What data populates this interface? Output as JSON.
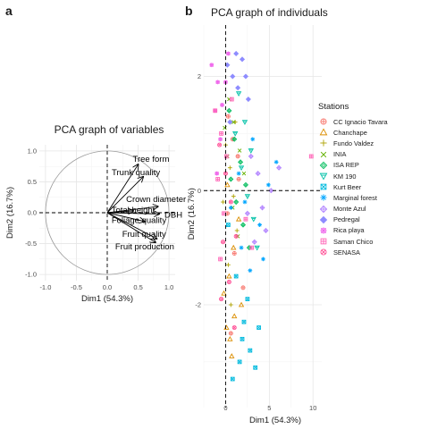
{
  "panels": {
    "a": "a",
    "b": "b"
  },
  "chart_data": [
    {
      "type": "biplot",
      "title": "PCA graph of variables",
      "xlabel": "Dim1 (54.3%)",
      "ylabel": "Dim2 (16.7%)",
      "xlim": [
        -1.1,
        1.1
      ],
      "ylim": [
        -1.1,
        1.1
      ],
      "xticks": [
        -1.0,
        -0.5,
        0.0,
        0.5,
        1.0
      ],
      "yticks": [
        -1.0,
        -0.5,
        0.0,
        0.5,
        1.0
      ],
      "xtick_labels": [
        "-1.0",
        "-0.5",
        "0.0",
        "0.5",
        "1.0"
      ],
      "ytick_labels": [
        "-1.0",
        "-0.5",
        "0.0",
        "0.5",
        "1.0"
      ],
      "grid": true,
      "unit_circle": true,
      "vectors": [
        {
          "name": "Tree form",
          "x": 0.5,
          "y": 0.78
        },
        {
          "name": "Trunk quality",
          "x": 0.58,
          "y": 0.58
        },
        {
          "name": "Crown diameter",
          "x": 0.82,
          "y": 0.1
        },
        {
          "name": "Total height",
          "x": 0.42,
          "y": 0.03
        },
        {
          "name": "DBH",
          "x": 0.84,
          "y": -0.02
        },
        {
          "name": "Foliage quality",
          "x": 0.6,
          "y": -0.14
        },
        {
          "name": "Fruit quality",
          "x": 0.8,
          "y": -0.42
        },
        {
          "name": "Fruit production",
          "x": 0.78,
          "y": -0.48
        }
      ]
    },
    {
      "type": "scatter",
      "title": "PCA graph of individuals",
      "xlabel": "Dim1 (54.3%)",
      "ylabel": "Dim2 (16.7%)",
      "xlim": [
        -2.5,
        11
      ],
      "ylim": [
        -3.8,
        2.9
      ],
      "xticks": [
        0,
        5,
        10
      ],
      "yticks": [
        -2,
        0,
        2
      ],
      "xtick_labels": [
        "0",
        "5",
        "10"
      ],
      "ytick_labels": [
        "-2",
        "0",
        "2"
      ],
      "grid": true,
      "legend": {
        "title": "Stations",
        "position": "right",
        "entries": [
          {
            "name": "CC Ignacio Tavara",
            "color": "#F8766D",
            "shape": "circle-plus"
          },
          {
            "name": "Chanchape",
            "color": "#DB8E00",
            "shape": "triangle"
          },
          {
            "name": "Fundo Valdez",
            "color": "#AEA200",
            "shape": "plus"
          },
          {
            "name": "INIA",
            "color": "#64B200",
            "shape": "cross"
          },
          {
            "name": "ISA REP",
            "color": "#00BD5C",
            "shape": "diamond"
          },
          {
            "name": "KM 190",
            "color": "#00C1A7",
            "shape": "triangle-down"
          },
          {
            "name": "Kurt Beer",
            "color": "#00BADE",
            "shape": "square-cross"
          },
          {
            "name": "Marginal forest",
            "color": "#00A6FF",
            "shape": "asterisk"
          },
          {
            "name": "Monte Azul",
            "color": "#B385FF",
            "shape": "diamond-plus"
          },
          {
            "name": "Pedregal",
            "color": "#8E8CFF",
            "shape": "diamond-filled"
          },
          {
            "name": "Rica playa",
            "color": "#EF67EB",
            "shape": "star"
          },
          {
            "name": "Saman Chico",
            "color": "#FF63B6",
            "shape": "square-plus"
          },
          {
            "name": "SENASA",
            "color": "#FF4D94",
            "shape": "circle-cross"
          }
        ]
      },
      "series": [
        {
          "name": "CC Ignacio Tavara",
          "points": [
            [
              0.3,
              1.3
            ],
            [
              0.8,
              0.9
            ],
            [
              1.5,
              0.2
            ],
            [
              0.2,
              -0.4
            ],
            [
              1.0,
              -1.1
            ],
            [
              2.0,
              -1.7
            ],
            [
              0.6,
              -2.5
            ],
            [
              1.4,
              0.6
            ]
          ]
        },
        {
          "name": "Chanchape",
          "points": [
            [
              0.1,
              -2.4
            ],
            [
              0.5,
              -2.6
            ],
            [
              1.0,
              -2.2
            ],
            [
              1.8,
              -2.0
            ],
            [
              -0.2,
              -1.8
            ],
            [
              0.4,
              -1.5
            ],
            [
              0.9,
              -1.0
            ],
            [
              1.5,
              -0.5
            ],
            [
              0.2,
              0.1
            ],
            [
              0.7,
              -2.9
            ]
          ]
        },
        {
          "name": "Fundo Valdez",
          "points": [
            [
              0.0,
              0.8
            ],
            [
              0.5,
              0.4
            ],
            [
              0.9,
              -0.1
            ],
            [
              1.3,
              -0.7
            ],
            [
              0.3,
              -1.3
            ],
            [
              -0.3,
              -0.2
            ],
            [
              1.1,
              1.2
            ],
            [
              0.6,
              -2.0
            ]
          ]
        },
        {
          "name": "INIA",
          "points": [
            [
              0.4,
              1.6
            ],
            [
              0.9,
              1.2
            ],
            [
              1.6,
              0.7
            ],
            [
              2.1,
              0.3
            ],
            [
              0.2,
              0.6
            ],
            [
              0.8,
              -0.3
            ],
            [
              1.4,
              -0.8
            ],
            [
              -0.1,
              1.1
            ]
          ]
        },
        {
          "name": "ISA REP",
          "points": [
            [
              1.0,
              0.9
            ],
            [
              1.7,
              0.5
            ],
            [
              2.3,
              0.1
            ],
            [
              0.6,
              0.2
            ],
            [
              1.2,
              -0.2
            ],
            [
              2.0,
              -0.6
            ],
            [
              0.4,
              1.4
            ],
            [
              2.7,
              -1.0
            ]
          ]
        },
        {
          "name": "KM 190",
          "points": [
            [
              1.5,
              1.7
            ],
            [
              2.2,
              1.2
            ],
            [
              2.9,
              0.7
            ],
            [
              1.8,
              0.4
            ],
            [
              2.5,
              -0.1
            ],
            [
              3.2,
              -0.5
            ],
            [
              1.1,
              1.0
            ],
            [
              3.6,
              -1.0
            ]
          ]
        },
        {
          "name": "Kurt Beer",
          "points": [
            [
              0.3,
              -0.6
            ],
            [
              1.2,
              -1.5
            ],
            [
              2.1,
              -2.3
            ],
            [
              2.8,
              -2.8
            ],
            [
              3.4,
              -3.1
            ],
            [
              1.6,
              -3.0
            ],
            [
              0.8,
              -3.3
            ],
            [
              2.5,
              -1.9
            ],
            [
              3.8,
              -2.4
            ],
            [
              1.9,
              -2.6
            ]
          ]
        },
        {
          "name": "Marginal forest",
          "points": [
            [
              0.6,
              -0.3
            ],
            [
              1.8,
              -1.0
            ],
            [
              2.8,
              -1.4
            ],
            [
              3.9,
              -0.6
            ],
            [
              4.9,
              0.1
            ],
            [
              5.8,
              0.5
            ],
            [
              3.1,
              0.9
            ],
            [
              2.2,
              -0.2
            ],
            [
              4.3,
              -1.2
            ],
            [
              1.5,
              0.3
            ]
          ]
        },
        {
          "name": "Monte Azul",
          "points": [
            [
              2.5,
              -0.4
            ],
            [
              3.3,
              -0.9
            ],
            [
              4.2,
              -0.3
            ],
            [
              5.2,
              0.0
            ],
            [
              6.1,
              0.4
            ],
            [
              3.7,
              0.3
            ],
            [
              2.9,
              0.6
            ],
            [
              4.6,
              -0.7
            ]
          ]
        },
        {
          "name": "Pedregal",
          "points": [
            [
              0.2,
              2.2
            ],
            [
              0.8,
              2.0
            ],
            [
              1.4,
              1.8
            ],
            [
              1.9,
              2.3
            ],
            [
              2.6,
              1.6
            ],
            [
              0.5,
              1.2
            ],
            [
              1.2,
              2.4
            ],
            [
              2.3,
              2.0
            ]
          ]
        },
        {
          "name": "Rica playa",
          "points": [
            [
              -1.6,
              2.2
            ],
            [
              -0.9,
              1.9
            ],
            [
              -0.4,
              1.5
            ],
            [
              0.0,
              1.9
            ],
            [
              -1.2,
              1.4
            ],
            [
              -0.6,
              0.9
            ],
            [
              -1.0,
              0.3
            ],
            [
              0.3,
              2.4
            ]
          ]
        },
        {
          "name": "Saman Chico",
          "points": [
            [
              -1.2,
              1.4
            ],
            [
              -0.5,
              1.0
            ],
            [
              0.1,
              0.6
            ],
            [
              0.7,
              1.6
            ],
            [
              -0.9,
              0.2
            ],
            [
              -0.2,
              -0.4
            ],
            [
              2.3,
              -0.5
            ],
            [
              3.0,
              -1.0
            ],
            [
              9.8,
              0.6
            ],
            [
              -0.6,
              -1.2
            ]
          ]
        },
        {
          "name": "SENASA",
          "points": [
            [
              -0.7,
              0.8
            ],
            [
              0.0,
              0.3
            ],
            [
              0.6,
              -0.2
            ],
            [
              1.2,
              -0.8
            ],
            [
              -0.3,
              -0.9
            ],
            [
              0.4,
              -1.6
            ],
            [
              1.0,
              -2.4
            ],
            [
              -0.5,
              -1.9
            ]
          ]
        }
      ]
    }
  ]
}
